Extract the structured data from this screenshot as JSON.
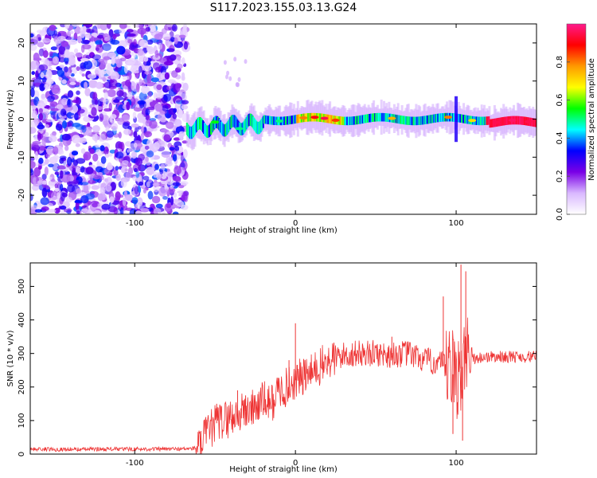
{
  "title": "S117.2023.155.03.13.G24",
  "chart_data": [
    {
      "type": "heatmap",
      "xlabel": "Height of straight line (km)",
      "ylabel": "Frequency (Hz)",
      "xlim": [
        -165,
        150
      ],
      "ylim": [
        -25,
        25
      ],
      "x_ticks": [
        -100,
        0,
        100
      ],
      "y_ticks": [
        -20,
        -10,
        0,
        10,
        20
      ],
      "x_tick_labels": [
        "-100",
        "0",
        "100"
      ],
      "y_tick_labels": [
        "-20",
        "-10",
        "0",
        "10",
        "20"
      ],
      "noise_region_x": [
        -165,
        -68
      ],
      "signal_region_x": [
        -68,
        150
      ],
      "ridge_frequency_hz": 0,
      "colorbar": {
        "label": "Normalized spectral amplitude",
        "range": [
          0,
          1
        ],
        "ticks": [
          0.0,
          0.2,
          0.4,
          0.6,
          0.8
        ],
        "tick_labels": [
          "0.0",
          "0.2",
          "0.4",
          "0.6",
          "0.8"
        ],
        "colors": [
          "#ffffff",
          "#d9b8ff",
          "#7a00e6",
          "#0000ff",
          "#00ffff",
          "#00ff00",
          "#ffff00",
          "#ff9900",
          "#ff0000",
          "#ff1a8c"
        ]
      }
    },
    {
      "type": "line",
      "xlabel": "Height of straight line (km)",
      "ylabel": "SNR (10 * v/v)",
      "xlim": [
        -165,
        150
      ],
      "ylim": [
        0,
        570
      ],
      "x_ticks": [
        -100,
        0,
        100
      ],
      "y_ticks": [
        0,
        100,
        200,
        300,
        400,
        500
      ],
      "x_tick_labels": [
        "-100",
        "0",
        "100"
      ],
      "y_tick_labels": [
        "0",
        "100",
        "200",
        "300",
        "400",
        "500"
      ],
      "color": "#ee3333",
      "x": [
        -165,
        -140,
        -120,
        -100,
        -80,
        -65,
        -60,
        -55,
        -50,
        -45,
        -40,
        -35,
        -30,
        -25,
        -20,
        -15,
        -10,
        -5,
        0,
        5,
        10,
        15,
        20,
        25,
        30,
        40,
        50,
        60,
        70,
        80,
        90,
        95,
        100,
        102,
        104,
        106,
        110,
        120,
        130,
        140,
        150
      ],
      "y": [
        15,
        14,
        15,
        15,
        15,
        16,
        20,
        60,
        90,
        100,
        110,
        120,
        130,
        140,
        160,
        150,
        190,
        200,
        220,
        230,
        240,
        260,
        275,
        285,
        295,
        300,
        300,
        295,
        300,
        280,
        270,
        250,
        230,
        250,
        260,
        270,
        285,
        290,
        290,
        290,
        290
      ],
      "spikes": [
        {
          "x": -49,
          "y": 150
        },
        {
          "x": -36,
          "y": 190
        },
        {
          "x": -31,
          "y": 175
        },
        {
          "x": -4,
          "y": 280
        },
        {
          "x": 0,
          "y": 390
        },
        {
          "x": 60,
          "y": 350
        },
        {
          "x": 92,
          "y": 470
        },
        {
          "x": 103,
          "y": 565
        },
        {
          "x": 106,
          "y": 545
        },
        {
          "x": 98,
          "y": 60
        },
        {
          "x": 104,
          "y": 40
        }
      ]
    }
  ]
}
